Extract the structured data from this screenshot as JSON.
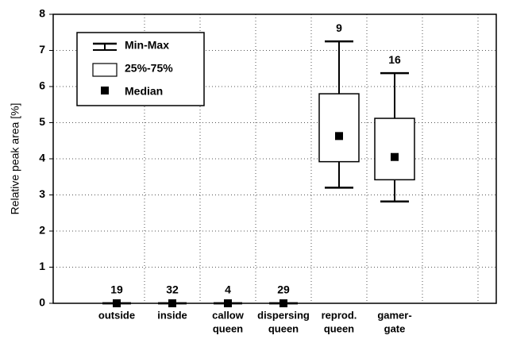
{
  "chart_data": {
    "type": "box",
    "ylabel": "Relative peak area [%]",
    "categories": [
      [
        "outside"
      ],
      [
        "inside"
      ],
      [
        "callow",
        "queen"
      ],
      [
        "dispersing",
        "queen"
      ],
      [
        "reprod.",
        "queen"
      ],
      [
        "gamer-",
        "gate"
      ]
    ],
    "min": [
      0,
      0,
      0,
      0,
      3.2,
      2.82
    ],
    "q1": [
      0,
      0,
      0,
      0,
      3.92,
      3.42
    ],
    "median": [
      0,
      0,
      0,
      0,
      4.63,
      4.05
    ],
    "q3": [
      0,
      0,
      0,
      0,
      5.8,
      5.12
    ],
    "max": [
      0,
      0,
      0,
      0,
      7.25,
      6.37
    ],
    "n": [
      19,
      32,
      4,
      29,
      9,
      16
    ],
    "legend": [
      "Min-Max",
      "25%-75%",
      "Median"
    ],
    "ylim": [
      0,
      8
    ],
    "yticks": [
      0,
      1,
      2,
      3,
      4,
      5,
      6,
      7,
      8
    ],
    "grid": true
  }
}
